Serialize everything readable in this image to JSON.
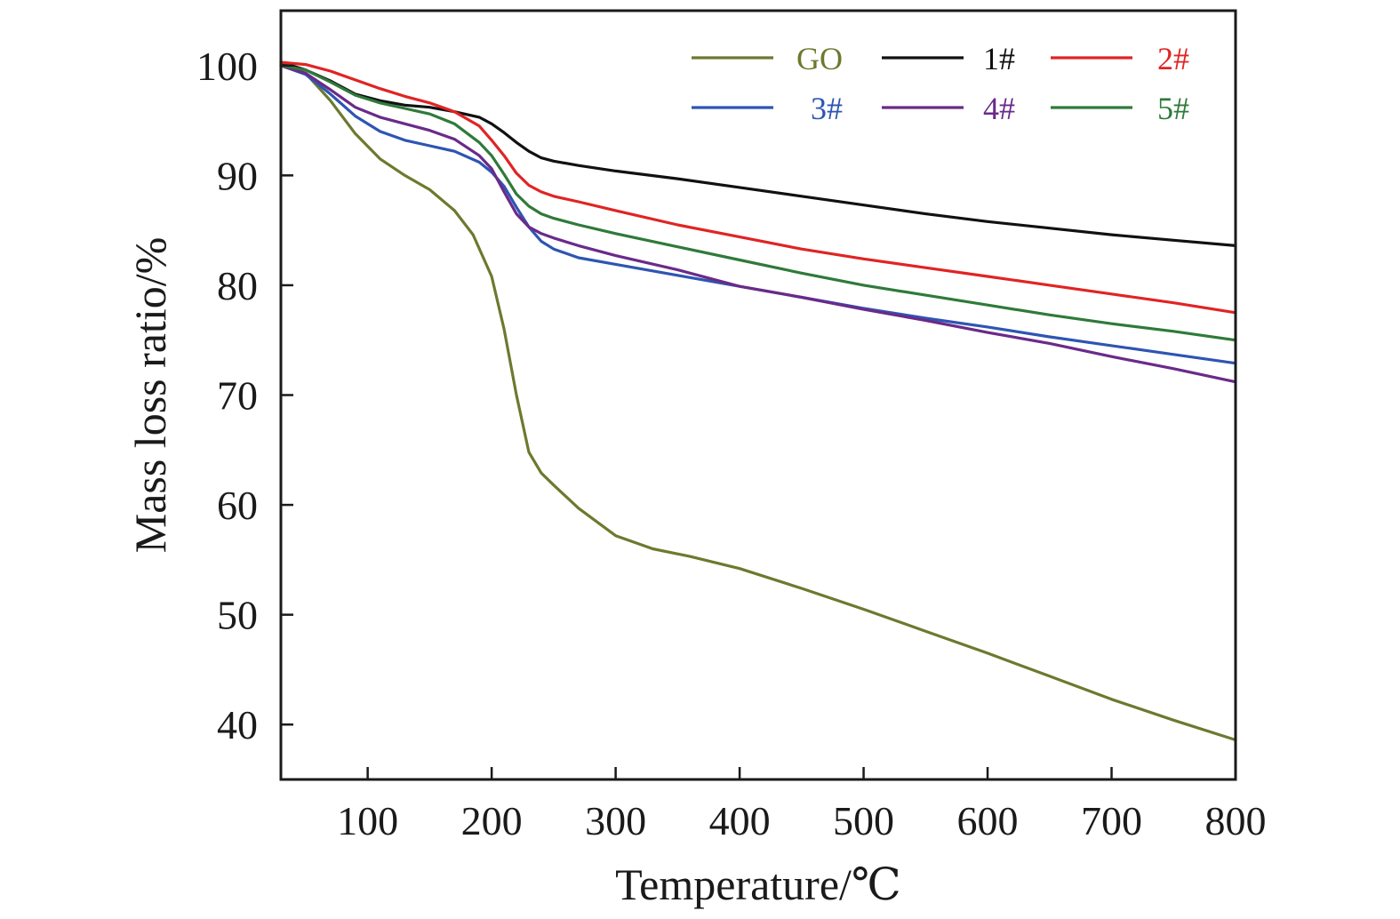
{
  "chart_data": {
    "type": "line",
    "xlabel": "Temperature/℃",
    "ylabel": "Mass loss ratio/%",
    "xlim": [
      30,
      800
    ],
    "ylim": [
      35,
      105
    ],
    "xticks": [
      100,
      200,
      300,
      400,
      500,
      600,
      700,
      800
    ],
    "yticks": [
      40,
      50,
      60,
      70,
      80,
      90,
      100
    ],
    "grid": false,
    "legend": "top-right",
    "series": [
      {
        "name": "GO",
        "color": "#6b7a2e",
        "x": [
          30,
          50,
          70,
          90,
          110,
          130,
          150,
          170,
          185,
          200,
          210,
          220,
          230,
          240,
          250,
          270,
          300,
          330,
          360,
          400,
          450,
          500,
          550,
          600,
          650,
          700,
          750,
          800
        ],
        "y": [
          100,
          99.3,
          96.8,
          93.8,
          91.5,
          90.0,
          88.7,
          86.8,
          84.6,
          80.8,
          76.0,
          70.0,
          64.8,
          62.9,
          61.8,
          59.7,
          57.2,
          56.0,
          55.3,
          54.2,
          52.4,
          50.5,
          48.5,
          46.5,
          44.4,
          42.3,
          40.4,
          38.6
        ]
      },
      {
        "name": "1#",
        "color": "#111111",
        "x": [
          30,
          50,
          70,
          90,
          110,
          130,
          150,
          170,
          190,
          200,
          210,
          220,
          230,
          240,
          250,
          270,
          300,
          350,
          400,
          450,
          500,
          550,
          600,
          650,
          700,
          750,
          800
        ],
        "y": [
          100.3,
          99.6,
          98.6,
          97.4,
          96.8,
          96.4,
          96.2,
          95.8,
          95.3,
          94.7,
          93.9,
          93.0,
          92.2,
          91.6,
          91.3,
          90.9,
          90.4,
          89.7,
          88.9,
          88.1,
          87.3,
          86.5,
          85.8,
          85.2,
          84.6,
          84.1,
          83.6
        ]
      },
      {
        "name": "2#",
        "color": "#e02424",
        "x": [
          30,
          50,
          70,
          90,
          110,
          130,
          150,
          170,
          190,
          200,
          210,
          220,
          230,
          240,
          250,
          270,
          300,
          350,
          400,
          450,
          500,
          550,
          600,
          650,
          700,
          750,
          800
        ],
        "y": [
          100.3,
          100.1,
          99.5,
          98.7,
          97.9,
          97.2,
          96.6,
          95.8,
          94.5,
          93.2,
          91.8,
          90.2,
          89.1,
          88.5,
          88.1,
          87.6,
          86.8,
          85.5,
          84.4,
          83.3,
          82.4,
          81.6,
          80.8,
          80.0,
          79.2,
          78.4,
          77.5
        ]
      },
      {
        "name": "3#",
        "color": "#2e55b3",
        "x": [
          30,
          50,
          70,
          90,
          110,
          130,
          150,
          170,
          190,
          200,
          210,
          220,
          230,
          240,
          250,
          270,
          300,
          350,
          400,
          450,
          500,
          550,
          600,
          650,
          700,
          750,
          800
        ],
        "y": [
          100,
          99.2,
          97.4,
          95.4,
          94.0,
          93.2,
          92.7,
          92.2,
          91.2,
          90.3,
          89.0,
          87.1,
          85.3,
          84.0,
          83.3,
          82.5,
          81.9,
          80.9,
          79.9,
          78.9,
          77.9,
          77.0,
          76.2,
          75.3,
          74.5,
          73.7,
          72.9
        ]
      },
      {
        "name": "4#",
        "color": "#6a2a8a",
        "x": [
          30,
          50,
          70,
          90,
          110,
          130,
          150,
          170,
          190,
          200,
          210,
          220,
          230,
          240,
          250,
          270,
          300,
          350,
          400,
          450,
          500,
          550,
          600,
          650,
          700,
          750,
          800
        ],
        "y": [
          100,
          99.3,
          97.8,
          96.2,
          95.3,
          94.7,
          94.1,
          93.3,
          91.8,
          90.6,
          88.5,
          86.5,
          85.3,
          84.7,
          84.3,
          83.6,
          82.7,
          81.4,
          79.9,
          78.9,
          77.8,
          76.8,
          75.7,
          74.7,
          73.5,
          72.4,
          71.2
        ]
      },
      {
        "name": "5#",
        "color": "#2f7a3a",
        "x": [
          30,
          50,
          70,
          90,
          110,
          130,
          150,
          170,
          190,
          200,
          210,
          220,
          230,
          240,
          250,
          270,
          300,
          350,
          400,
          450,
          500,
          550,
          600,
          650,
          700,
          750,
          800
        ],
        "y": [
          100,
          99.6,
          98.5,
          97.3,
          96.6,
          96.1,
          95.6,
          94.7,
          93.0,
          91.8,
          90.1,
          88.3,
          87.2,
          86.5,
          86.1,
          85.5,
          84.7,
          83.5,
          82.3,
          81.1,
          80.0,
          79.1,
          78.2,
          77.3,
          76.5,
          75.8,
          75.0
        ]
      }
    ]
  }
}
